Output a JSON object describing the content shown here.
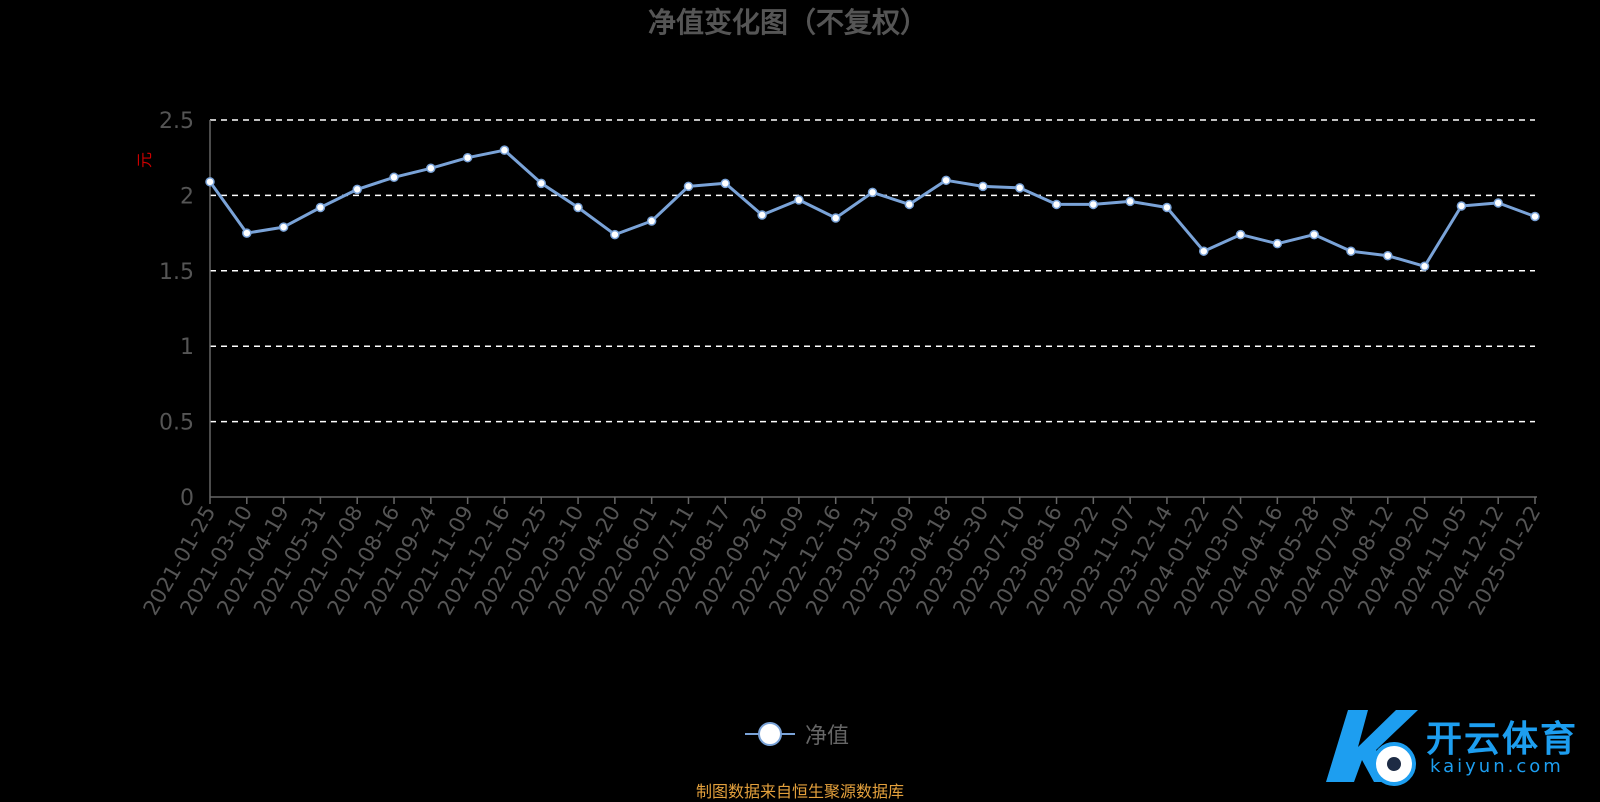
{
  "chart_data": {
    "type": "line",
    "title": "净值变化图（不复权）",
    "ylabel": "元",
    "ylim": [
      0,
      2.5
    ],
    "yticks": [
      "0",
      "0.5",
      "1",
      "1.5",
      "2",
      "2.5"
    ],
    "grid": true,
    "legend_position": "bottom",
    "categories": [
      "2021-01-25",
      "2021-03-10",
      "2021-04-19",
      "2021-05-31",
      "2021-07-08",
      "2021-08-16",
      "2021-09-24",
      "2021-11-09",
      "2021-12-16",
      "2022-01-25",
      "2022-03-10",
      "2022-04-20",
      "2022-06-01",
      "2022-07-11",
      "2022-08-17",
      "2022-09-26",
      "2022-11-09",
      "2022-12-16",
      "2023-01-31",
      "2023-03-09",
      "2023-04-18",
      "2023-05-30",
      "2023-07-10",
      "2023-08-16",
      "2023-09-22",
      "2023-11-07",
      "2023-12-14",
      "2024-01-22",
      "2024-03-07",
      "2024-04-16",
      "2024-05-28",
      "2024-07-04",
      "2024-08-12",
      "2024-09-20",
      "2024-11-05",
      "2024-12-12",
      "2025-01-22"
    ],
    "series": [
      {
        "name": "净值",
        "color": "#7aa3d8",
        "values": [
          2.09,
          1.75,
          1.79,
          1.92,
          2.04,
          2.12,
          2.18,
          2.25,
          2.3,
          2.08,
          1.92,
          1.74,
          1.83,
          2.06,
          2.08,
          1.87,
          1.97,
          1.85,
          2.02,
          1.94,
          2.1,
          2.06,
          2.05,
          1.94,
          1.94,
          1.96,
          1.92,
          1.63,
          1.74,
          1.68,
          1.74,
          1.63,
          1.6,
          1.53,
          1.93,
          1.95,
          1.86
        ]
      }
    ]
  },
  "legend": {
    "label": "净值"
  },
  "footer": {
    "source": "制图数据来自恒生聚源数据库"
  },
  "logo": {
    "cn": "开云体育",
    "en": "kaiyun.com"
  }
}
